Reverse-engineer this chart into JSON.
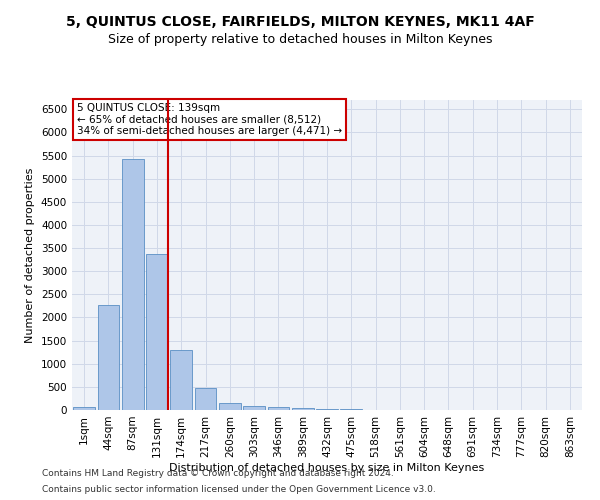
{
  "title": "5, QUINTUS CLOSE, FAIRFIELDS, MILTON KEYNES, MK11 4AF",
  "subtitle": "Size of property relative to detached houses in Milton Keynes",
  "xlabel": "Distribution of detached houses by size in Milton Keynes",
  "ylabel": "Number of detached properties",
  "footer1": "Contains HM Land Registry data © Crown copyright and database right 2024.",
  "footer2": "Contains public sector information licensed under the Open Government Licence v3.0.",
  "bar_labels": [
    "1sqm",
    "44sqm",
    "87sqm",
    "131sqm",
    "174sqm",
    "217sqm",
    "260sqm",
    "303sqm",
    "346sqm",
    "389sqm",
    "432sqm",
    "475sqm",
    "518sqm",
    "561sqm",
    "604sqm",
    "648sqm",
    "691sqm",
    "734sqm",
    "777sqm",
    "820sqm",
    "863sqm"
  ],
  "bar_values": [
    70,
    2280,
    5430,
    3380,
    1295,
    475,
    160,
    90,
    65,
    45,
    30,
    15,
    10,
    5,
    3,
    2,
    1,
    1,
    1,
    1,
    1
  ],
  "bar_color": "#aec6e8",
  "bar_edgecolor": "#5a8fc4",
  "annotation_text": "5 QUINTUS CLOSE: 139sqm\n← 65% of detached houses are smaller (8,512)\n34% of semi-detached houses are larger (4,471) →",
  "annotation_box_color": "#ffffff",
  "annotation_box_edgecolor": "#cc0000",
  "vline_x_idx": 3,
  "vline_color": "#cc0000",
  "ylim": [
    0,
    6700
  ],
  "yticks": [
    0,
    500,
    1000,
    1500,
    2000,
    2500,
    3000,
    3500,
    4000,
    4500,
    5000,
    5500,
    6000,
    6500
  ],
  "grid_color": "#d0d8e8",
  "background_color": "#eef2f8",
  "title_fontsize": 10,
  "subtitle_fontsize": 9,
  "axis_fontsize": 8,
  "tick_fontsize": 7.5,
  "footer_fontsize": 6.5,
  "annotation_fontsize": 7.5
}
